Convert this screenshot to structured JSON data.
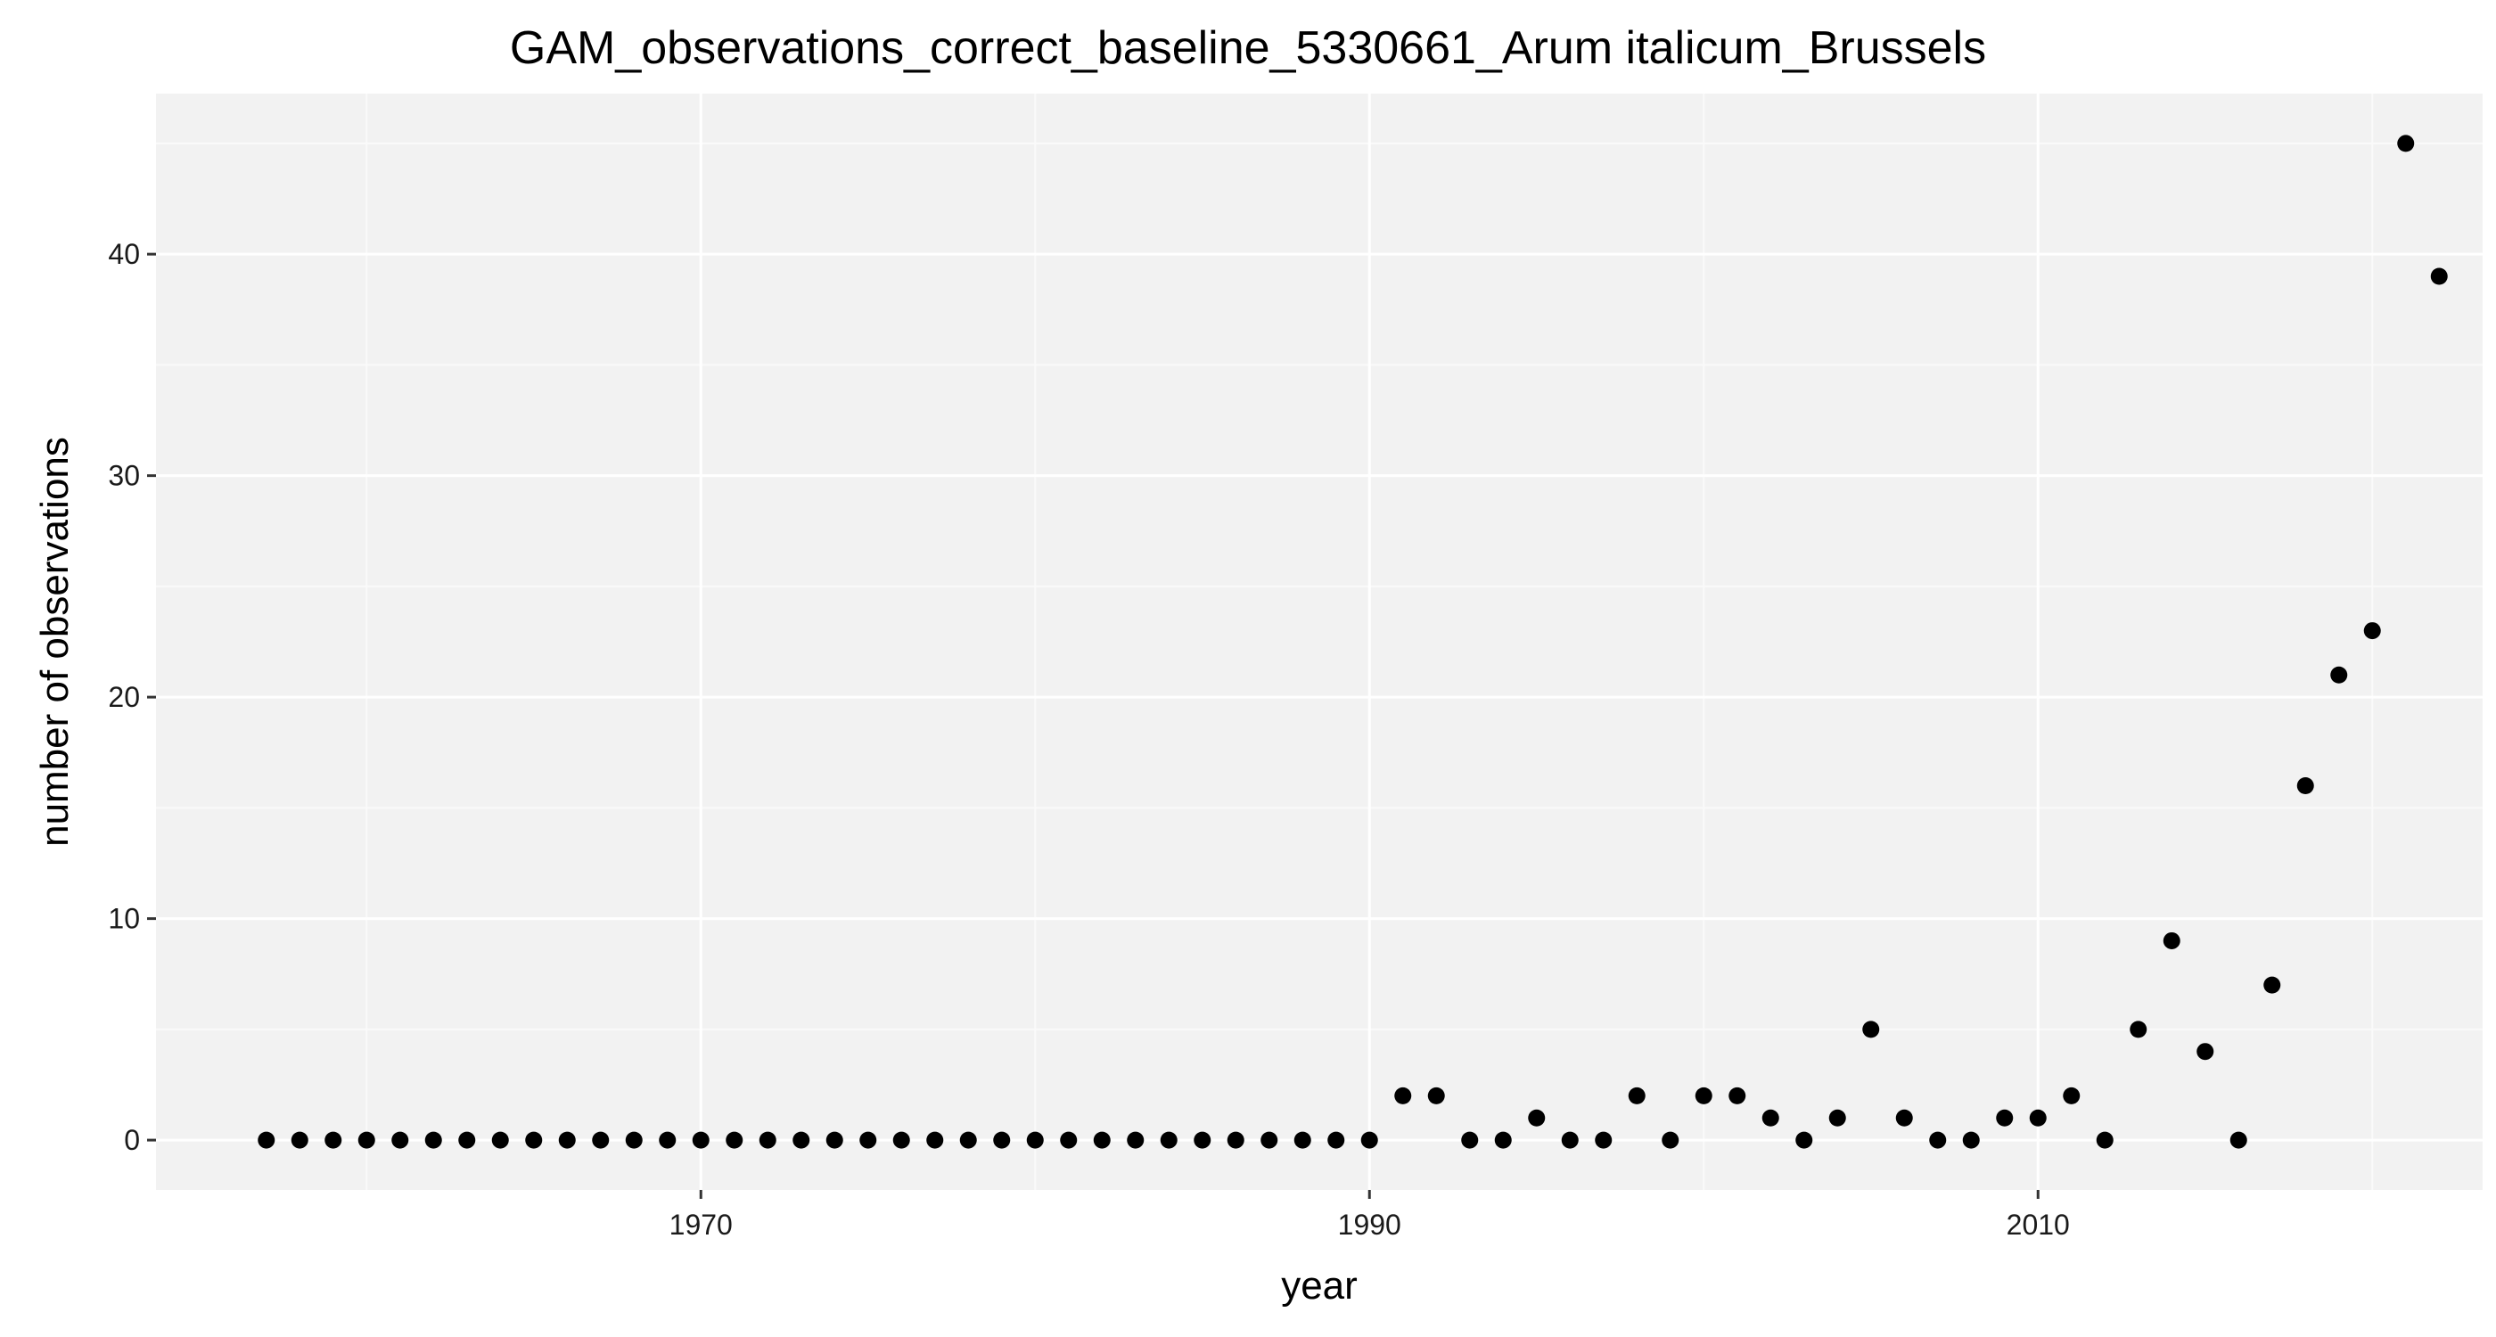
{
  "chart_data": {
    "type": "scatter",
    "title": "GAM_observations_correct_baseline_5330661_Arum italicum_Brussels",
    "xlabel": "year",
    "ylabel": "number of observations",
    "xlim": [
      1953.7,
      2023.3
    ],
    "ylim": [
      -2.25,
      47.25
    ],
    "x_ticks": [
      1970,
      1990,
      2010
    ],
    "y_ticks": [
      0,
      10,
      20,
      30,
      40
    ],
    "grid": true,
    "legend": "none",
    "colors": {
      "panel": "#f2f2f2",
      "grid_major": "#ffffff",
      "grid_minor": "#fafafa",
      "point": "#000000",
      "tick": "#333333"
    },
    "series": [
      {
        "x": [
          1957,
          1958,
          1959,
          1960,
          1961,
          1962,
          1963,
          1964,
          1965,
          1966,
          1967,
          1968,
          1969,
          1970,
          1971,
          1972,
          1973,
          1974,
          1975,
          1976,
          1977,
          1978,
          1979,
          1980,
          1981,
          1982,
          1983,
          1984,
          1985,
          1986,
          1987,
          1988,
          1989,
          1990,
          1991,
          1992,
          1993,
          1994,
          1995,
          1996,
          1997,
          1998,
          1999,
          2000,
          2001,
          2002,
          2003,
          2004,
          2005,
          2006,
          2007,
          2008,
          2009,
          2010,
          2011,
          2012,
          2013,
          2014,
          2015,
          2016,
          2017,
          2018,
          2019,
          2020,
          2021,
          2022
        ],
        "values": [
          0,
          0,
          0,
          0,
          0,
          0,
          0,
          0,
          0,
          0,
          0,
          0,
          0,
          0,
          0,
          0,
          0,
          0,
          0,
          0,
          0,
          0,
          0,
          0,
          0,
          0,
          0,
          0,
          0,
          0,
          0,
          0,
          0,
          0,
          2,
          2,
          0,
          0,
          1,
          0,
          0,
          2,
          0,
          2,
          2,
          1,
          0,
          1,
          5,
          1,
          0,
          0,
          1,
          1,
          2,
          0,
          5,
          9,
          4,
          0,
          7,
          16,
          21,
          23,
          45,
          39
        ]
      }
    ]
  }
}
